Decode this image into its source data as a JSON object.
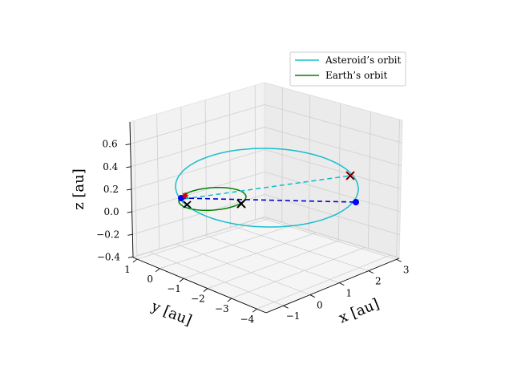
{
  "chart_data": {
    "type": "line",
    "projection": "3d",
    "grid": true,
    "legend_position": "top-right",
    "xlabel": "x [au]",
    "ylabel": "y [au]",
    "zlabel": "z [au]",
    "xticks": [
      "−1",
      "0",
      "1",
      "2",
      "3"
    ],
    "yticks": [
      "1",
      "0",
      "−1",
      "−2",
      "−3",
      "−4"
    ],
    "zticks": [
      "0.6",
      "0.4",
      "0.2",
      "0.0",
      "−0.2",
      "−0.4"
    ],
    "xlim": [
      -1.5,
      3.2
    ],
    "ylim": [
      -4.6,
      1.2
    ],
    "zlim": [
      -0.42,
      0.72
    ],
    "series": [
      {
        "name": "Asteroid’s orbit",
        "color": "#17becf",
        "style": "solid"
      },
      {
        "name": "Earth’s orbit",
        "color": "#008000",
        "style": "solid"
      }
    ],
    "markers": {
      "sun_x": {
        "color": "#000000",
        "symbol": "x"
      },
      "earth_launch": {
        "color": "#0000ff",
        "symbol": "circle"
      },
      "asteroid_arrival": {
        "color": "#0000ff",
        "symbol": "circle"
      },
      "earth_crossing_x": {
        "color": "#000000",
        "symbol": "x"
      },
      "asteroid_cross": {
        "color": "#cc0000",
        "symbol": "x"
      },
      "origin_star": {
        "color": "#cc0000",
        "symbol": "star"
      }
    },
    "colors": {
      "transfer_blue": "#0000cc",
      "transfer_cyan": "#17becf"
    }
  }
}
